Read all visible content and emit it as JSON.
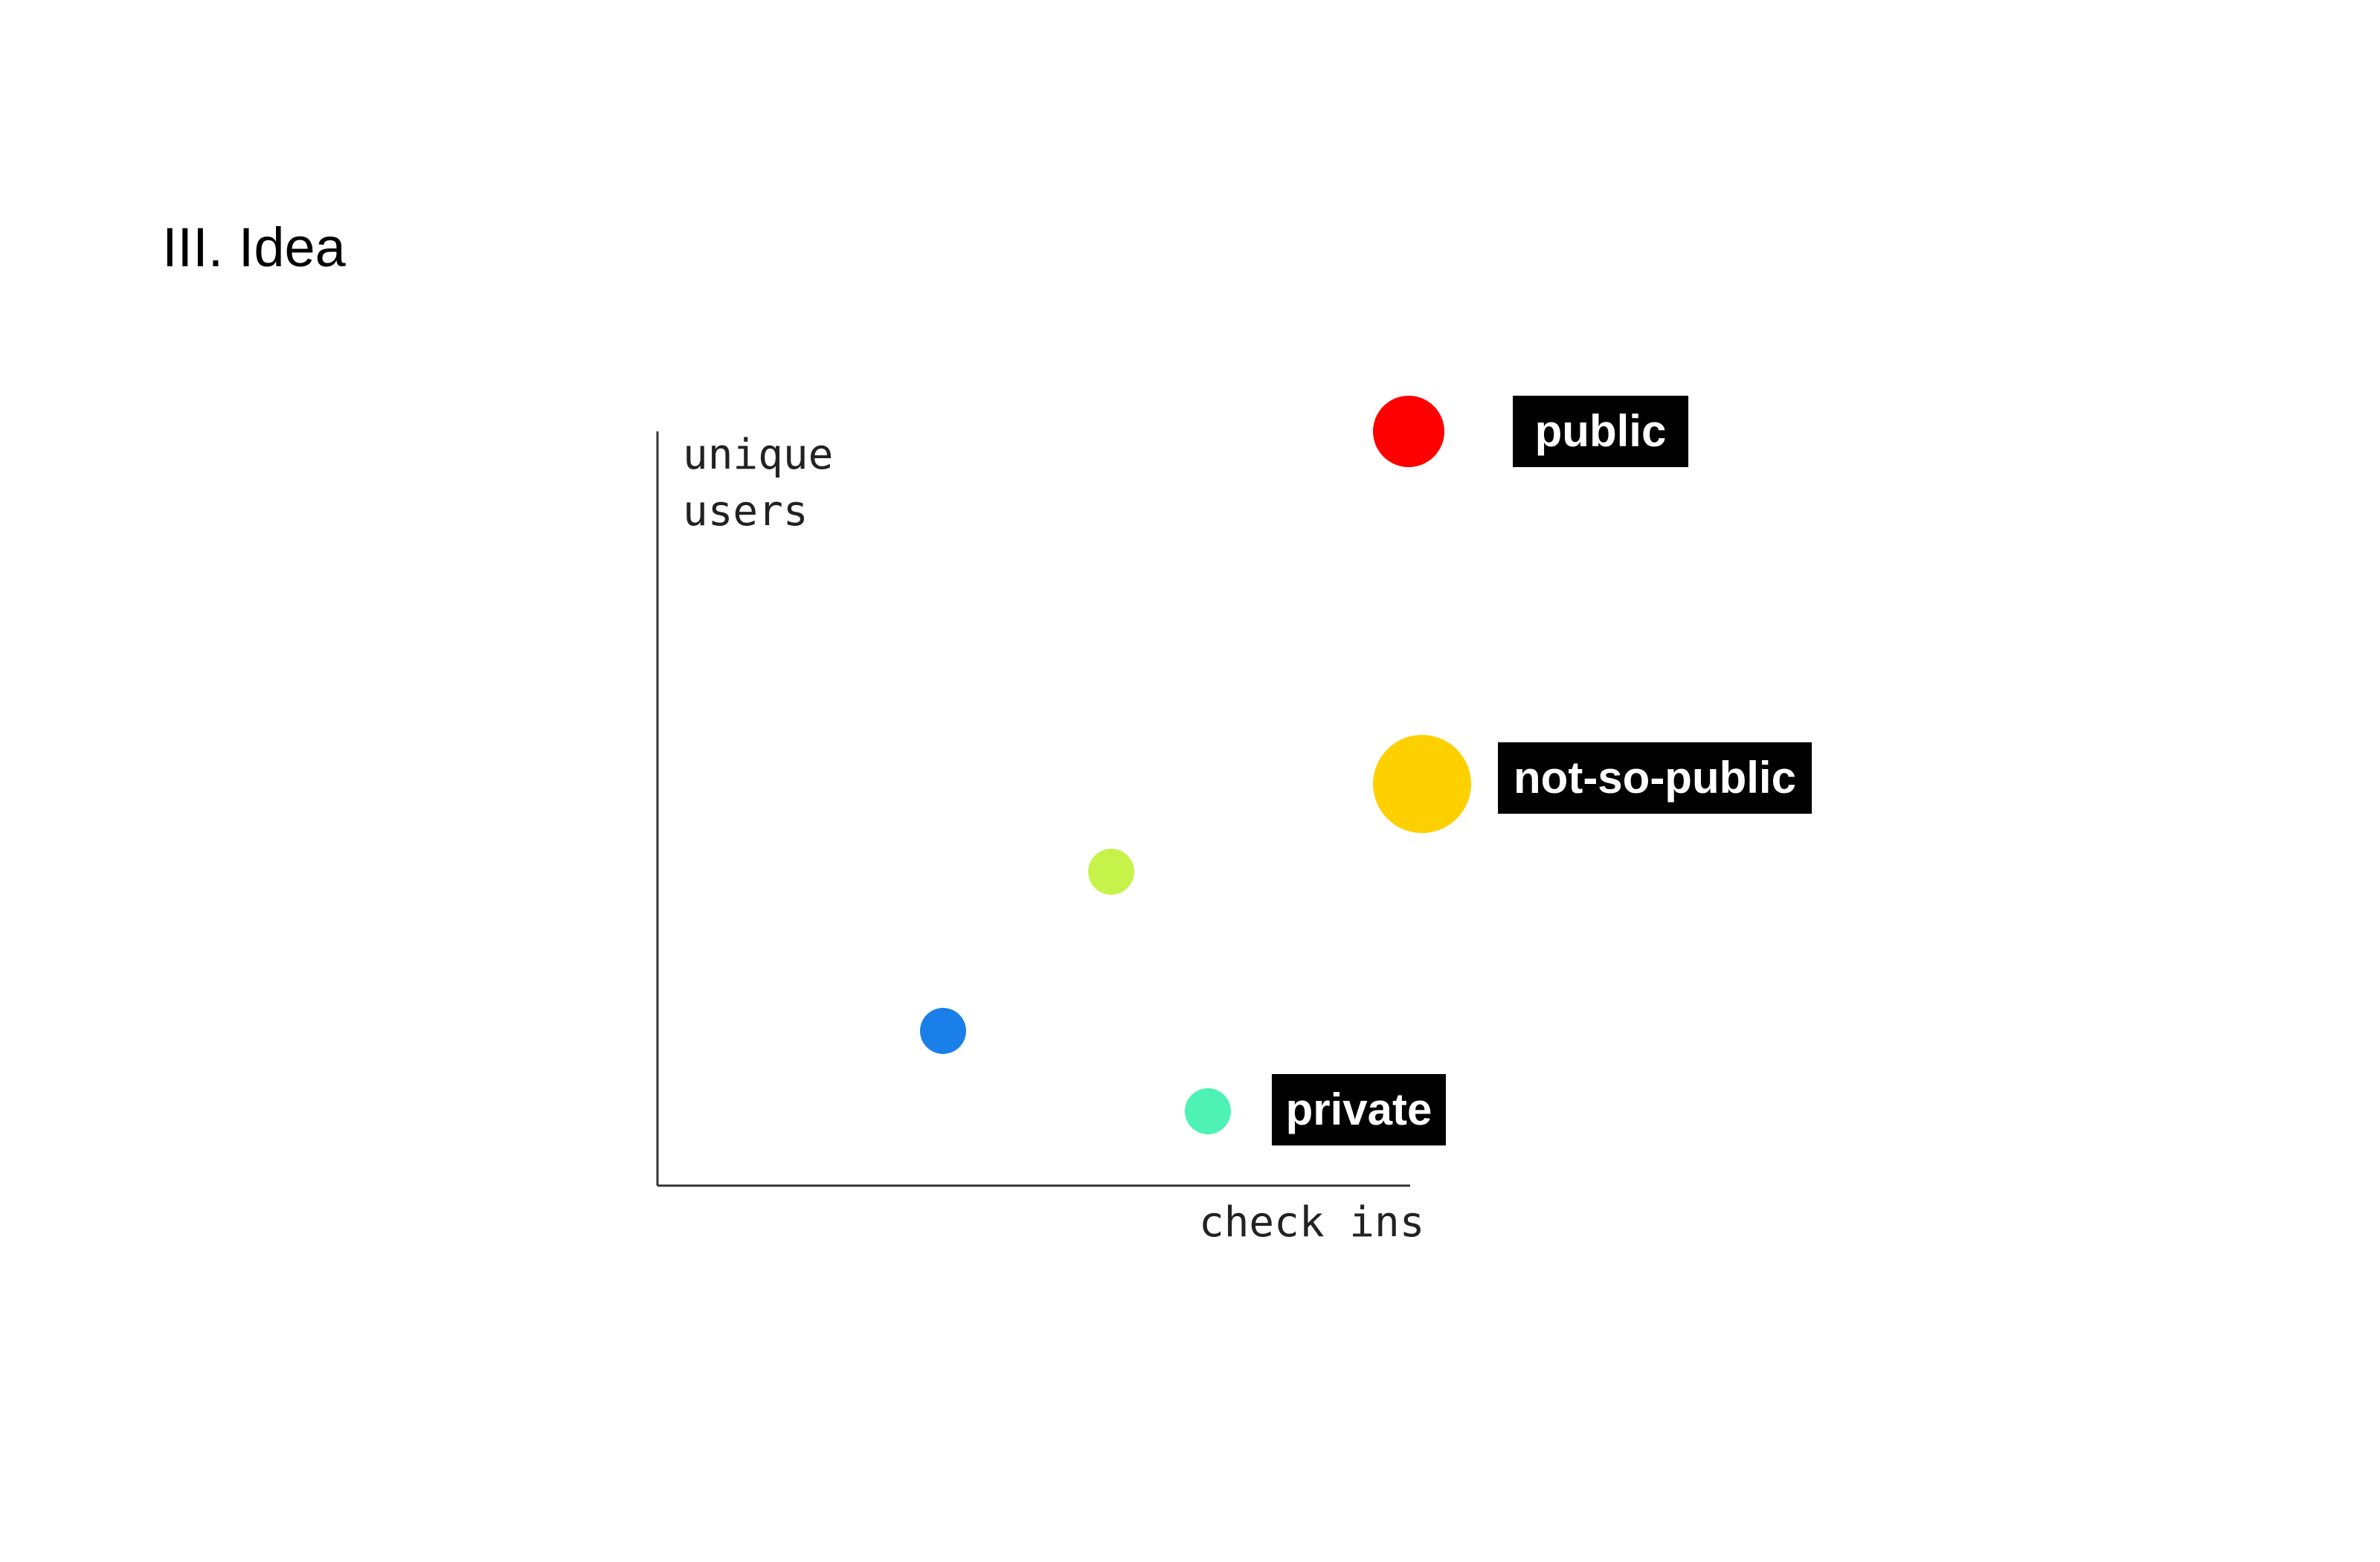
{
  "slide": {
    "title": "III. Idea"
  },
  "diagram": {
    "y_axis_label": [
      "unique",
      "users"
    ],
    "x_axis_label": "check ins",
    "dots": [
      {
        "color": "#ff0000"
      },
      {
        "color": "#ffd000"
      },
      {
        "color": "#c6f34a"
      },
      {
        "color": "#1a7fe8"
      },
      {
        "color": "#4ef2b4"
      }
    ],
    "tags": [
      {
        "text": "public"
      },
      {
        "text": "not-so-public"
      },
      {
        "text": "private"
      }
    ]
  }
}
